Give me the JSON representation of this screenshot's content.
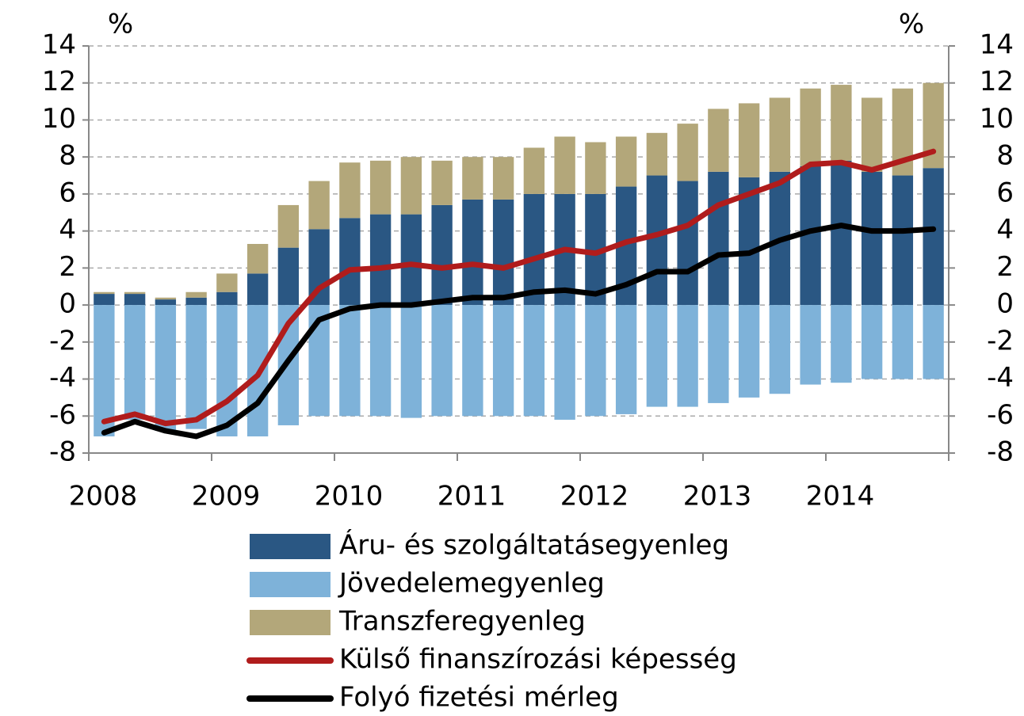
{
  "chart_data": {
    "type": "bar",
    "y_label": "%",
    "y2_label": "%",
    "categories": [
      "2008",
      null,
      null,
      null,
      "2009",
      null,
      null,
      null,
      "2010",
      null,
      null,
      null,
      "2011",
      null,
      null,
      null,
      "2012",
      null,
      null,
      null,
      "2013",
      null,
      null,
      null,
      "2014",
      null,
      null,
      null
    ],
    "series": [
      {
        "name": "Áru- és szolgáltatásegyenleg",
        "type": "bar",
        "color": "#2a5783",
        "values": [
          0.6,
          0.6,
          0.3,
          0.4,
          0.7,
          1.7,
          3.1,
          4.1,
          4.7,
          4.9,
          4.9,
          5.4,
          5.7,
          5.7,
          6.0,
          6.0,
          6.0,
          6.4,
          7.0,
          6.7,
          7.2,
          6.9,
          7.2,
          7.5,
          7.8,
          7.2,
          7.0,
          7.4
        ]
      },
      {
        "name": "Jövedelemegyenleg",
        "type": "bar",
        "color": "#7eb2d9",
        "values": [
          -7.1,
          -6.2,
          -6.8,
          -6.7,
          -7.1,
          -7.1,
          -6.5,
          -6.0,
          -6.0,
          -6.0,
          -6.1,
          -6.0,
          -6.0,
          -6.0,
          -6.0,
          -6.2,
          -6.0,
          -5.9,
          -5.5,
          -5.5,
          -5.3,
          -5.0,
          -4.8,
          -4.3,
          -4.2,
          -4.0,
          -4.0,
          -4.0
        ]
      },
      {
        "name": "Transzferegyenleg",
        "type": "bar",
        "color": "#b3a77a",
        "values": [
          0.1,
          0.1,
          0.1,
          0.3,
          1.0,
          1.6,
          2.3,
          2.6,
          3.0,
          2.9,
          3.1,
          2.4,
          2.3,
          2.3,
          2.5,
          3.1,
          2.8,
          2.7,
          2.3,
          3.1,
          3.4,
          4.0,
          4.0,
          4.2,
          4.1,
          4.0,
          4.7,
          4.6
        ]
      },
      {
        "name": "Külső finanszírozási képesség",
        "type": "line",
        "color": "#b01c1c",
        "values": [
          -6.3,
          -5.9,
          -6.4,
          -6.2,
          -5.2,
          -3.8,
          -1.0,
          0.9,
          1.9,
          2.0,
          2.2,
          2.0,
          2.2,
          2.0,
          2.5,
          3.0,
          2.8,
          3.4,
          3.8,
          4.3,
          5.4,
          6.0,
          6.6,
          7.6,
          7.7,
          7.3,
          7.8,
          8.3
        ]
      },
      {
        "name": "Folyó fizetési mérleg",
        "type": "line",
        "color": "#000000",
        "values": [
          -6.9,
          -6.3,
          -6.8,
          -7.1,
          -6.5,
          -5.3,
          -3.0,
          -0.8,
          -0.2,
          0.0,
          0.0,
          0.2,
          0.4,
          0.4,
          0.7,
          0.8,
          0.6,
          1.1,
          1.8,
          1.8,
          2.7,
          2.8,
          3.5,
          4.0,
          4.3,
          4.0,
          4.0,
          4.1
        ]
      }
    ],
    "ylim": [
      -8,
      14
    ],
    "yticks": [
      -8,
      -6,
      -4,
      -2,
      0,
      2,
      4,
      6,
      8,
      10,
      12,
      14
    ],
    "y2lim": [
      -8,
      14
    ],
    "y2ticks": [
      -8,
      -6,
      -4,
      -2,
      0,
      2,
      4,
      6,
      8,
      10,
      12,
      14
    ],
    "grid": true,
    "legend": "bottom"
  }
}
